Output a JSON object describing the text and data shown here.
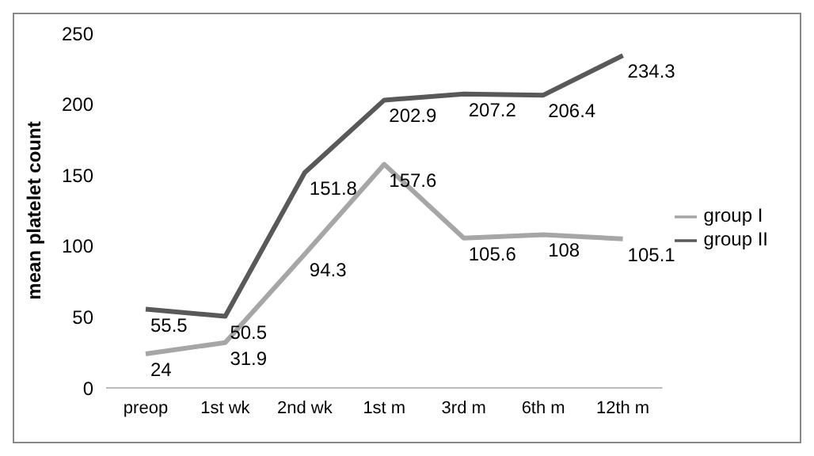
{
  "chart_data": {
    "type": "line",
    "ylabel": "mean platelet count",
    "categories": [
      "preop",
      "1st wk",
      "2nd wk",
      "1st m",
      "3rd m",
      "6th m",
      "12th m"
    ],
    "series": [
      {
        "name": "group II",
        "color": "#595959",
        "values": [
          55.5,
          50.5,
          151.8,
          202.9,
          207.2,
          206.4,
          234.3
        ]
      },
      {
        "name": "group I",
        "color": "#a6a6a6",
        "values": [
          24,
          31.9,
          94.3,
          157.6,
          105.6,
          108,
          105.1
        ]
      }
    ],
    "ylim": [
      0,
      250
    ],
    "yticks": [
      0,
      50,
      100,
      150,
      200,
      250
    ],
    "grid": false,
    "legend": "right",
    "marker": "none",
    "line_style": "solid",
    "data_labels": true
  }
}
